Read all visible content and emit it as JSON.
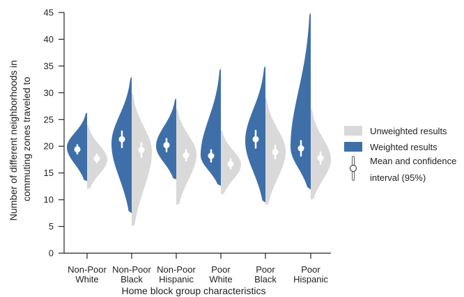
{
  "chart_data": {
    "type": "violin",
    "ylabel_line1": "Number of different neighborhoods in",
    "ylabel_line2": "commuting zones traveled to",
    "xlabel": "Home block group characteristics",
    "ylim": [
      0,
      45
    ],
    "yticks": [
      0,
      5,
      10,
      15,
      20,
      25,
      30,
      35,
      40,
      45
    ],
    "categories": [
      {
        "line1": "Non-Poor",
        "line2": "White"
      },
      {
        "line1": "Non-Poor",
        "line2": "Black"
      },
      {
        "line1": "Non-Poor",
        "line2": "Hispanic"
      },
      {
        "line1": "Poor",
        "line2": "White"
      },
      {
        "line1": "Poor",
        "line2": "Black"
      },
      {
        "line1": "Poor",
        "line2": "Hispanic"
      }
    ],
    "series": [
      {
        "name": "Weighted results",
        "color": "#3e6fa8",
        "side": "left",
        "groups": [
          {
            "min": 13.5,
            "max": 26.3,
            "mode": 19.8,
            "mean": 19.4,
            "ci": [
              18.6,
              20.2
            ]
          },
          {
            "min": 7.5,
            "max": 33.0,
            "mode": 20.5,
            "mean": 21.3,
            "ci": [
              19.8,
              22.8
            ]
          },
          {
            "min": 13.8,
            "max": 28.9,
            "mode": 20.0,
            "mean": 20.2,
            "ci": [
              19.0,
              21.4
            ]
          },
          {
            "min": 12.6,
            "max": 34.5,
            "mode": 18.3,
            "mean": 18.2,
            "ci": [
              17.1,
              19.3
            ]
          },
          {
            "min": 9.5,
            "max": 35.0,
            "mode": 21.0,
            "mean": 21.3,
            "ci": [
              19.7,
              22.9
            ]
          },
          {
            "min": 11.9,
            "max": 45.0,
            "mode": 19.8,
            "mean": 19.6,
            "ci": [
              18.2,
              21.0
            ]
          }
        ]
      },
      {
        "name": "Unweighted results",
        "color": "#d9d9d9",
        "side": "right",
        "groups": [
          {
            "min": 12.0,
            "max": 24.0,
            "mode": 17.5,
            "mean": 17.7,
            "ci": [
              17.0,
              18.5
            ]
          },
          {
            "min": 5.0,
            "max": 30.0,
            "mode": 19.0,
            "mean": 19.3,
            "ci": [
              18.0,
              20.6
            ]
          },
          {
            "min": 9.0,
            "max": 27.0,
            "mode": 18.5,
            "mean": 18.3,
            "ci": [
              17.3,
              19.3
            ]
          },
          {
            "min": 11.0,
            "max": 23.0,
            "mode": 16.5,
            "mean": 16.7,
            "ci": [
              15.8,
              17.6
            ]
          },
          {
            "min": 9.0,
            "max": 29.0,
            "mode": 19.0,
            "mean": 18.9,
            "ci": [
              17.7,
              20.1
            ]
          },
          {
            "min": 10.0,
            "max": 27.0,
            "mode": 17.5,
            "mean": 17.8,
            "ci": [
              16.7,
              18.9
            ]
          }
        ]
      }
    ],
    "legend": {
      "placement": "right",
      "entries": [
        {
          "label": "Unweighted results",
          "color": "#d9d9d9"
        },
        {
          "label": "Weighted results",
          "color": "#3e6fa8"
        },
        {
          "label_line1": "Mean and confidence",
          "label_line2": "interval (95%)",
          "color": "#ffffff"
        }
      ]
    },
    "grid": false
  }
}
